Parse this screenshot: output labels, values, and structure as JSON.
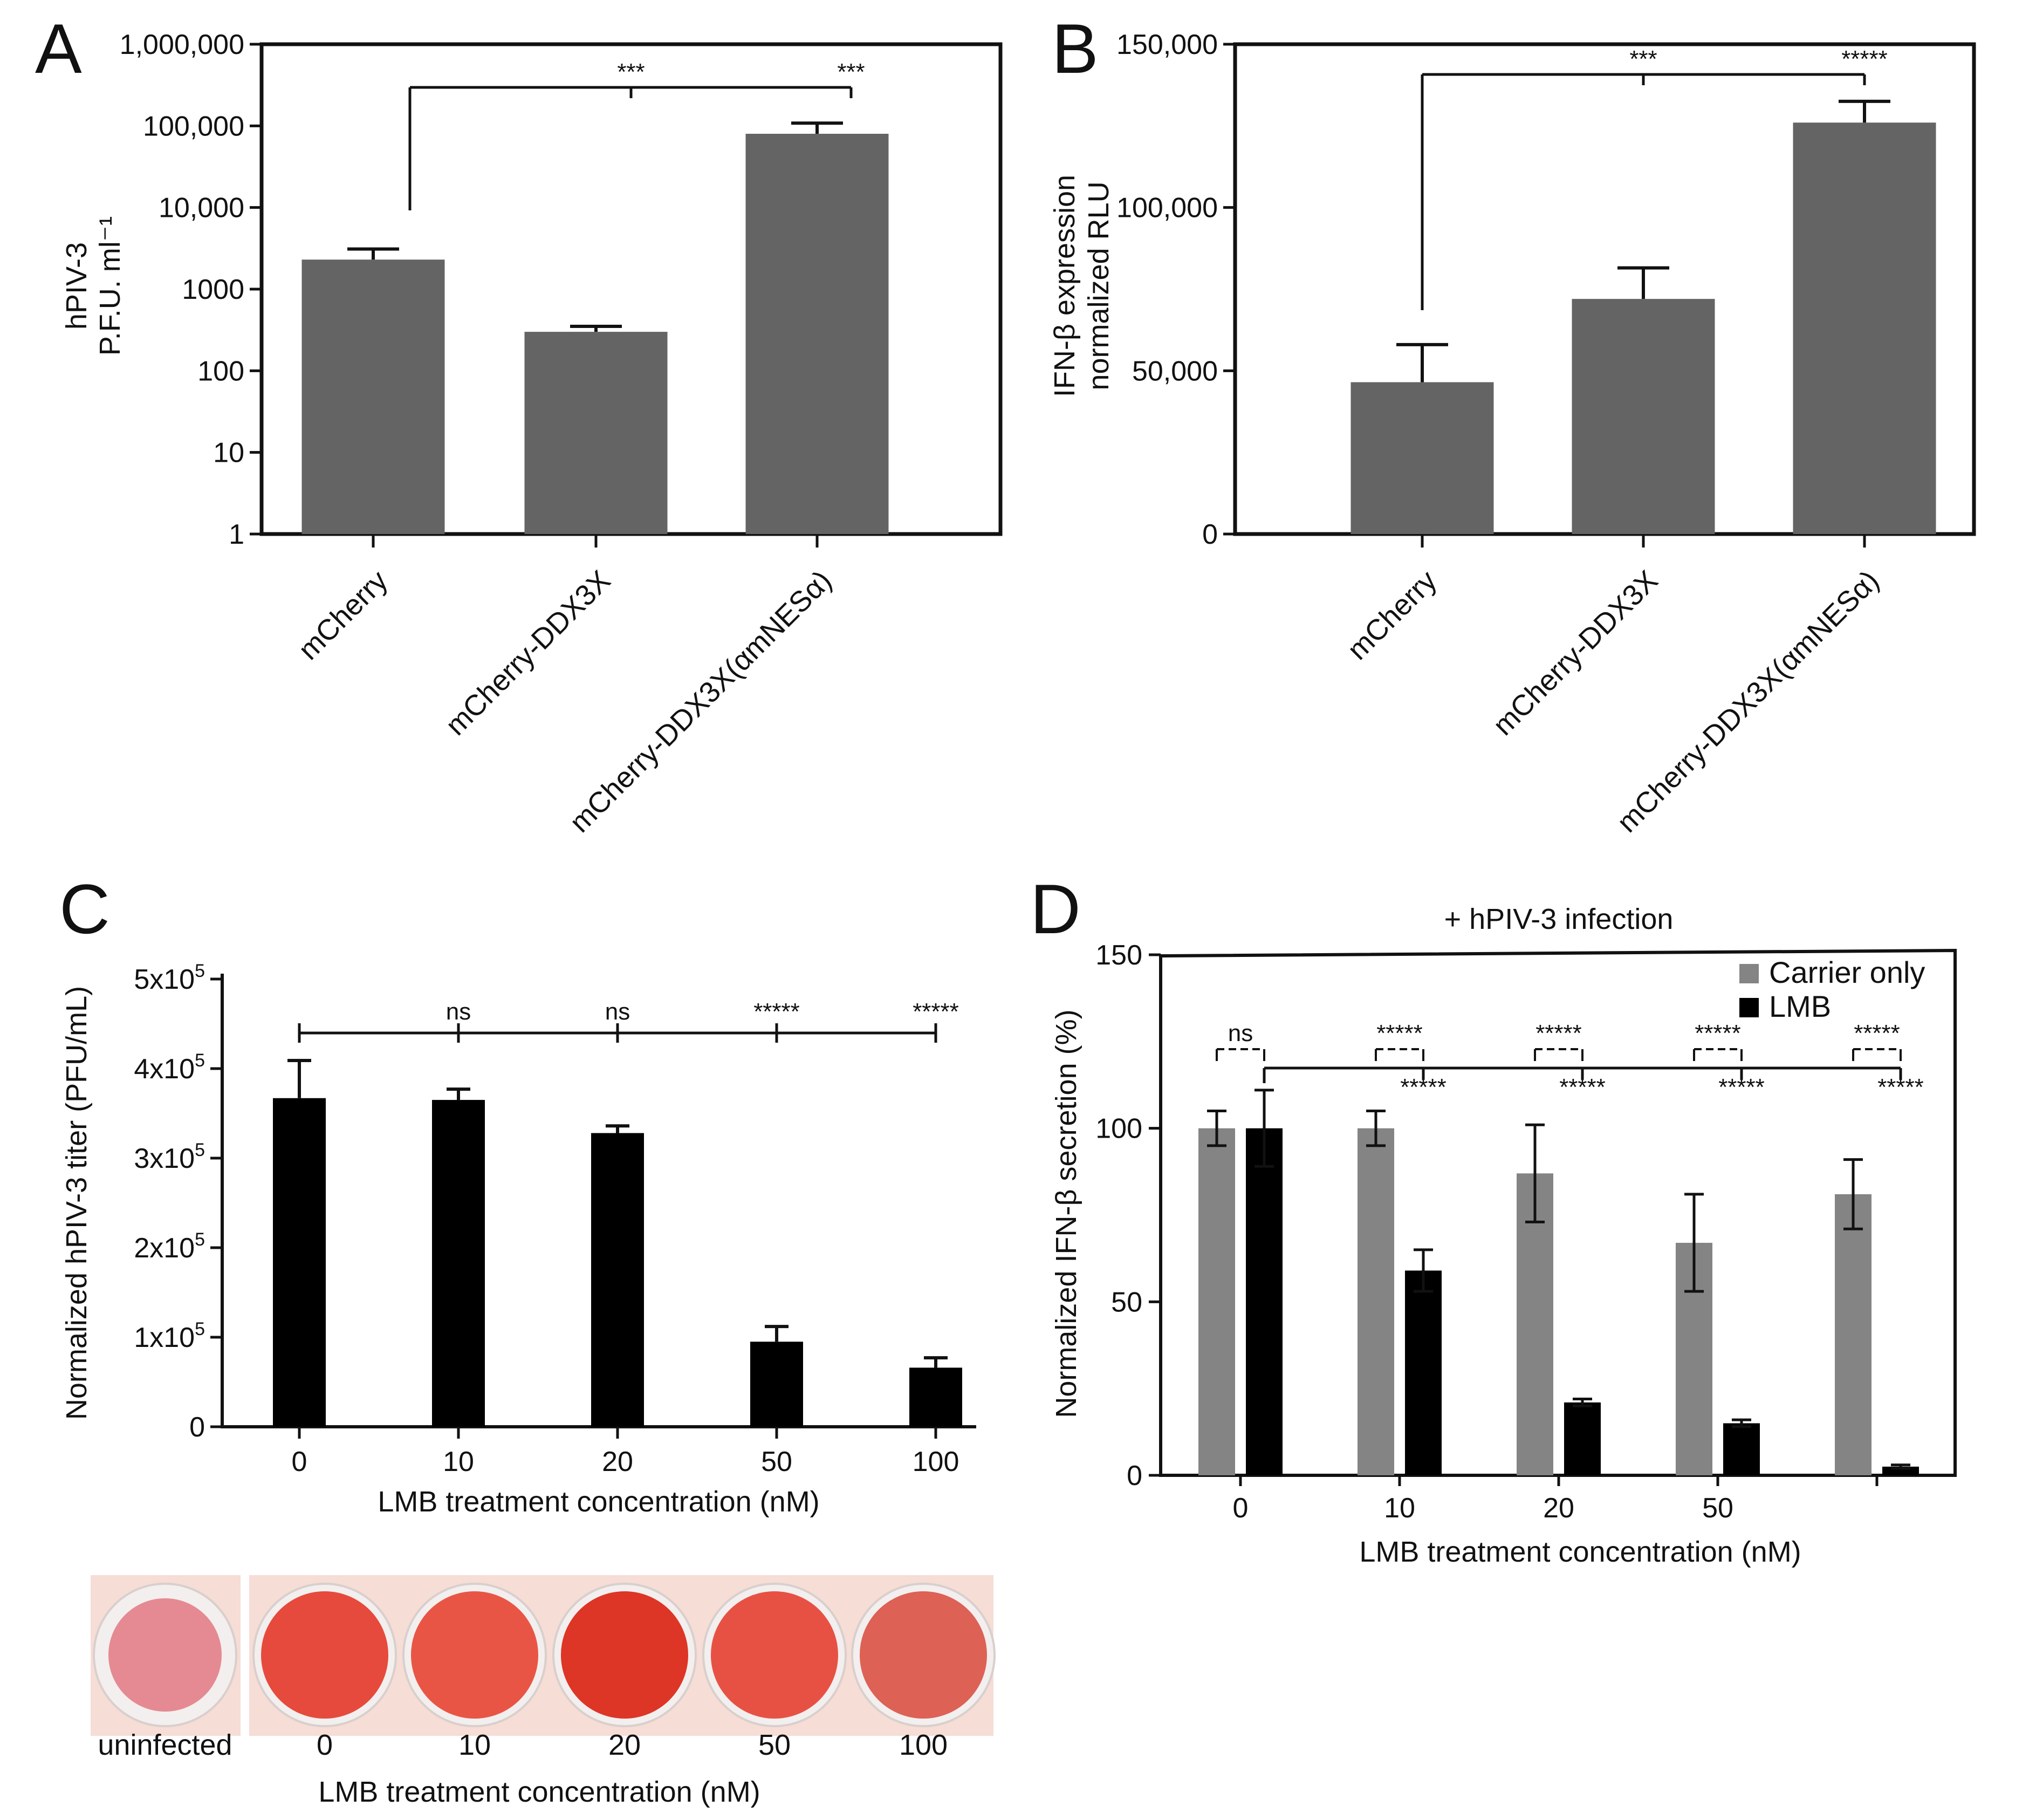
{
  "figure": {
    "panel_letters": [
      "A",
      "B",
      "C",
      "D"
    ],
    "photo": {
      "labels": [
        "uninfected",
        "0",
        "10",
        "20",
        "50",
        "100"
      ],
      "xlabel": "LMB treatment concentration (nM)",
      "well_colors": [
        "#e58a92",
        "#e64a3c",
        "#e95545",
        "#dd3526",
        "#e75144",
        "#dd6155"
      ]
    }
  },
  "chart_data": [
    {
      "id": "A",
      "type": "bar",
      "yscale": "log",
      "ylim": [
        1,
        1000000
      ],
      "yticks": [
        1,
        10,
        100,
        1000,
        10000,
        100000,
        1000000
      ],
      "yticklabels": [
        "1",
        "10",
        "100",
        "1000",
        "10,000",
        "100,000",
        "1,000,000"
      ],
      "ylabel": [
        "hPIV-3",
        "P.F.U. ml⁻¹"
      ],
      "xlabel": "",
      "categories": [
        "mCherry",
        "mCherry-DDX3X",
        "mCherry-DDX3X(αmNESα)"
      ],
      "values": [
        2300,
        300,
        80000
      ],
      "errors": [
        800,
        50,
        28000
      ],
      "bar_color": "#646464",
      "significance": [
        {
          "from": 0,
          "to": 1,
          "label": "***"
        },
        {
          "from": 0,
          "to": 2,
          "label": "***"
        }
      ]
    },
    {
      "id": "B",
      "type": "bar",
      "ylim": [
        0,
        150000
      ],
      "yticks": [
        0,
        50000,
        100000,
        150000
      ],
      "yticklabels": [
        "0",
        "50,000",
        "100,000",
        "150,000"
      ],
      "ylabel": [
        "IFN-β expression",
        "normalized RLU"
      ],
      "xlabel": "",
      "categories": [
        "mCherry",
        "mCherry-DDX3X",
        "mCherry-DDX3X(αmNESα)"
      ],
      "values": [
        46500,
        72000,
        126000
      ],
      "errors": [
        11500,
        9500,
        6500
      ],
      "bar_color": "#646464",
      "significance": [
        {
          "from": 0,
          "to": 1,
          "label": "***"
        },
        {
          "from": 0,
          "to": 2,
          "label": "*****"
        }
      ]
    },
    {
      "id": "C",
      "type": "bar",
      "ylim": [
        0,
        500000
      ],
      "yticks": [
        0,
        100000,
        200000,
        300000,
        400000,
        500000
      ],
      "yticklabels": [
        "0",
        "1x10",
        "2x10",
        "3x10",
        "4x10",
        "5x10"
      ],
      "ytick_exponent": "5",
      "ylabel": "Normalized hPIV-3 titer (PFU/mL)",
      "xlabel": "LMB treatment concentration (nM)",
      "categories": [
        "0",
        "10",
        "20",
        "50",
        "100"
      ],
      "values": [
        367000,
        365000,
        328000,
        95000,
        66000
      ],
      "errors": [
        42000,
        12000,
        8000,
        17000,
        11000
      ],
      "bar_color": "#000000",
      "significance_labels": [
        "ns",
        "ns",
        "*****",
        "*****"
      ]
    },
    {
      "id": "D",
      "type": "bar",
      "title": "+ hPIV-3 infection",
      "ylim": [
        0,
        150
      ],
      "yticks": [
        0,
        50,
        100,
        150
      ],
      "yticklabels": [
        "0",
        "50",
        "100",
        "150"
      ],
      "ylabel": "Normalized IFN-β secretion (%)",
      "xlabel": "LMB treatment concentration (nM)",
      "categories": [
        "0",
        "10",
        "20",
        "50",
        ""
      ],
      "series": [
        {
          "name": "Carrier only",
          "color": "#848484",
          "values": [
            100,
            100,
            87,
            67,
            81
          ],
          "errors": [
            5,
            5,
            14,
            14,
            10
          ]
        },
        {
          "name": "LMB",
          "color": "#000000",
          "values": [
            100,
            59,
            21,
            15,
            2.5
          ],
          "errors": [
            11,
            6,
            1,
            1,
            0.5
          ]
        }
      ],
      "legend": {
        "position": "top-right",
        "entries": [
          "Carrier only",
          "LMB"
        ]
      },
      "pair_labels": [
        "ns",
        "*****",
        "*****",
        "*****",
        "*****"
      ],
      "lmb_labels": [
        "*****",
        "*****",
        "*****",
        "*****"
      ]
    }
  ]
}
